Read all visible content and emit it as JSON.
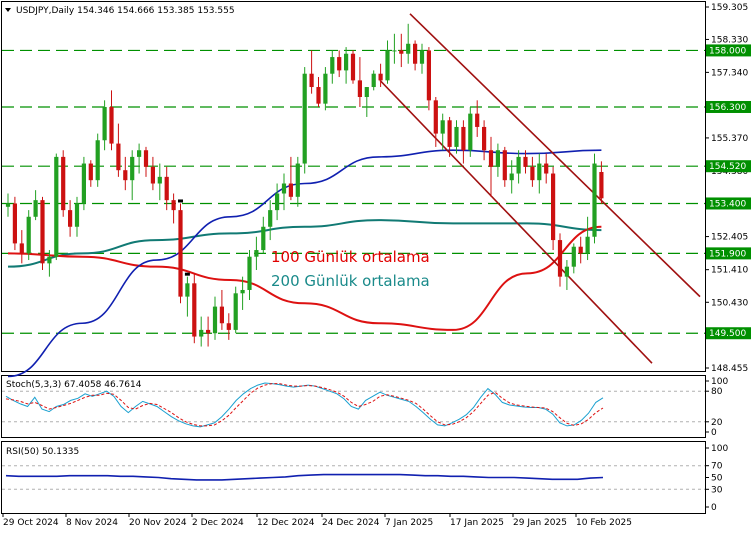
{
  "header": {
    "symbol_info": "USDJPY,Daily  154.346 154.666 153.385 153.555"
  },
  "chart_data": [
    {
      "type": "candlestick",
      "symbol": "USDJPY",
      "timeframe": "Daily",
      "ohlc_header": [
        154.346,
        154.666,
        153.385,
        153.555
      ],
      "ylim": [
        147.8,
        159.5
      ],
      "y_ticks": [
        "159.305",
        "158.330",
        "157.340",
        "156.355",
        "155.370",
        "154.380",
        "153.390",
        "152.405",
        "151.410",
        "150.430",
        "149.440",
        "148.455"
      ],
      "x_ticks": [
        "29 Oct 2024",
        "8 Nov 2024",
        "20 Nov 2024",
        "2 Dec 2024",
        "12 Dec 2024",
        "24 Dec 2024",
        "7 Jan 2025",
        "17 Jan 2025",
        "29 Jan 2025",
        "10 Feb 2025"
      ],
      "candles": [
        [
          153.3,
          153.7,
          153.0,
          153.4
        ],
        [
          153.4,
          153.6,
          152.0,
          152.2
        ],
        [
          152.2,
          152.6,
          151.6,
          151.9
        ],
        [
          151.9,
          153.2,
          151.7,
          153.0
        ],
        [
          153.0,
          153.8,
          152.9,
          153.5
        ],
        [
          153.5,
          153.6,
          151.4,
          151.6
        ],
        [
          151.6,
          152.0,
          151.2,
          151.8
        ],
        [
          151.8,
          154.9,
          151.7,
          154.8
        ],
        [
          154.8,
          155.0,
          153.0,
          153.2
        ],
        [
          153.2,
          153.5,
          152.4,
          152.7
        ],
        [
          152.7,
          153.6,
          152.4,
          153.4
        ],
        [
          153.4,
          154.8,
          153.2,
          154.6
        ],
        [
          154.6,
          154.7,
          153.9,
          154.1
        ],
        [
          154.1,
          155.5,
          153.9,
          155.3
        ],
        [
          155.3,
          156.5,
          155.0,
          156.3
        ],
        [
          156.3,
          156.8,
          155.0,
          155.2
        ],
        [
          155.2,
          155.8,
          154.2,
          154.4
        ],
        [
          154.4,
          154.8,
          153.8,
          154.1
        ],
        [
          154.1,
          155.0,
          153.5,
          154.8
        ],
        [
          154.8,
          155.2,
          154.3,
          155.0
        ],
        [
          155.0,
          155.1,
          154.2,
          154.5
        ],
        [
          154.5,
          154.8,
          153.8,
          154.0
        ],
        [
          154.0,
          154.6,
          153.5,
          154.2
        ],
        [
          154.2,
          154.5,
          153.2,
          153.5
        ],
        [
          153.5,
          153.7,
          152.8,
          153.2
        ],
        [
          153.2,
          153.4,
          150.4,
          150.6
        ],
        [
          150.6,
          151.2,
          150.0,
          151.0
        ],
        [
          151.0,
          151.3,
          149.2,
          149.4
        ],
        [
          149.4,
          150.0,
          149.1,
          149.6
        ],
        [
          149.6,
          150.0,
          149.1,
          149.5
        ],
        [
          149.5,
          150.6,
          149.3,
          150.3
        ],
        [
          150.3,
          150.8,
          149.6,
          149.8
        ],
        [
          149.8,
          150.1,
          149.3,
          149.6
        ],
        [
          149.6,
          150.9,
          149.5,
          150.7
        ],
        [
          150.7,
          151.2,
          150.2,
          150.8
        ],
        [
          150.8,
          152.0,
          150.5,
          151.8
        ],
        [
          151.8,
          152.4,
          151.4,
          152.0
        ],
        [
          152.0,
          153.0,
          151.9,
          152.7
        ],
        [
          152.7,
          153.5,
          152.3,
          153.2
        ],
        [
          153.2,
          154.0,
          152.9,
          153.7
        ],
        [
          153.7,
          154.3,
          153.2,
          154.0
        ],
        [
          154.0,
          154.8,
          153.5,
          153.6
        ],
        [
          153.6,
          154.8,
          153.3,
          154.6
        ],
        [
          154.6,
          157.5,
          154.3,
          157.3
        ],
        [
          157.3,
          158.0,
          156.7,
          156.9
        ],
        [
          156.9,
          157.2,
          156.3,
          156.4
        ],
        [
          156.4,
          157.5,
          156.2,
          157.3
        ],
        [
          157.3,
          158.0,
          157.0,
          157.8
        ],
        [
          157.8,
          158.0,
          157.2,
          157.4
        ],
        [
          157.4,
          158.1,
          157.0,
          157.9
        ],
        [
          157.9,
          158.0,
          157.0,
          157.1
        ],
        [
          157.1,
          157.8,
          156.3,
          156.6
        ],
        [
          156.6,
          156.9,
          156.0,
          156.9
        ],
        [
          156.9,
          157.4,
          156.8,
          157.3
        ],
        [
          157.3,
          157.6,
          156.9,
          157.1
        ],
        [
          157.1,
          158.3,
          157.0,
          158.0
        ],
        [
          158.0,
          158.5,
          157.6,
          158.0
        ],
        [
          158.0,
          158.5,
          157.5,
          157.9
        ],
        [
          157.9,
          158.8,
          157.6,
          158.2
        ],
        [
          158.2,
          158.3,
          157.4,
          157.6
        ],
        [
          157.6,
          158.2,
          157.3,
          158.0
        ],
        [
          158.0,
          158.1,
          156.2,
          156.5
        ],
        [
          156.5,
          156.6,
          155.1,
          155.5
        ],
        [
          155.5,
          156.1,
          155.0,
          155.9
        ],
        [
          155.9,
          156.0,
          154.8,
          155.1
        ],
        [
          155.1,
          155.9,
          154.9,
          155.7
        ],
        [
          155.7,
          155.9,
          154.6,
          155.0
        ],
        [
          155.0,
          156.3,
          154.8,
          156.1
        ],
        [
          156.1,
          156.5,
          155.4,
          155.7
        ],
        [
          155.7,
          155.9,
          154.7,
          155.0
        ],
        [
          155.0,
          155.4,
          153.6,
          154.5
        ],
        [
          154.5,
          155.2,
          154.2,
          155.0
        ],
        [
          155.0,
          155.1,
          153.9,
          154.1
        ],
        [
          154.1,
          154.7,
          153.7,
          154.3
        ],
        [
          154.3,
          155.0,
          154.0,
          154.8
        ],
        [
          154.8,
          155.0,
          154.3,
          154.5
        ],
        [
          154.5,
          154.8,
          153.9,
          154.1
        ],
        [
          154.1,
          154.9,
          153.7,
          154.6
        ],
        [
          154.6,
          154.9,
          154.0,
          154.3
        ],
        [
          154.3,
          154.5,
          152.0,
          152.3
        ],
        [
          152.3,
          152.5,
          150.9,
          151.2
        ],
        [
          151.2,
          151.7,
          150.8,
          151.5
        ],
        [
          151.5,
          152.2,
          151.3,
          152.1
        ],
        [
          152.1,
          152.4,
          151.6,
          151.9
        ],
        [
          151.9,
          153.0,
          151.7,
          152.4
        ],
        [
          152.4,
          154.9,
          152.2,
          154.6
        ],
        [
          154.346,
          154.666,
          153.385,
          153.555
        ]
      ],
      "ma100": [
        151.9,
        151.8,
        151.5,
        151.1,
        150.4,
        149.8,
        149.6,
        151.3,
        152.7
      ],
      "ma200": [
        151.5,
        151.9,
        152.3,
        152.5,
        152.7,
        152.9,
        152.8,
        152.8,
        152.6
      ],
      "ma_blue": [
        148.2,
        149.8,
        151.7,
        153.0,
        154.0,
        154.8,
        155.0,
        154.9,
        155.0
      ],
      "horizontal_levels": [
        {
          "value": 158.0,
          "label": "158.000"
        },
        {
          "value": 156.3,
          "label": "156.300"
        },
        {
          "value": 154.52,
          "label": "154.520"
        },
        {
          "value": 153.4,
          "label": "153.400"
        },
        {
          "value": 151.9,
          "label": "151.900"
        },
        {
          "value": 149.5,
          "label": "149.500"
        }
      ],
      "annotations": [
        {
          "text": "100 Günlük ortalama",
          "color": "#e00000"
        },
        {
          "text": "200 Günlük ortalama",
          "color": "#1a8a8a"
        }
      ],
      "colors": {
        "bull": "#22a022",
        "bear": "#cc1111",
        "ma100": "#dd1111",
        "ma200": "#117a74",
        "ma_blue": "#1020b0",
        "level": "#009000",
        "channel": "#a01010",
        "marker": "#000000"
      }
    },
    {
      "type": "line",
      "title": "Stoch(5,3,3) 67.4058 46.7614",
      "ylim": [
        0,
        100
      ],
      "y_ticks": [
        "100",
        "80",
        "20",
        "0"
      ],
      "levels": [
        80,
        20
      ],
      "series": [
        {
          "values": [
            70,
            62,
            55,
            50,
            68,
            45,
            40,
            50,
            54,
            62,
            66,
            75,
            70,
            75,
            80,
            70,
            50,
            38,
            50,
            60,
            55,
            50,
            40,
            30,
            22,
            16,
            12,
            10,
            14,
            18,
            30,
            45,
            62,
            75,
            85,
            92,
            96,
            95,
            93,
            90,
            88,
            90,
            92,
            90,
            85,
            80,
            75,
            65,
            50,
            45,
            62,
            70,
            78,
            72,
            68,
            64,
            60,
            50,
            38,
            25,
            14,
            12,
            18,
            25,
            34,
            48,
            68,
            85,
            74,
            58,
            53,
            51,
            49,
            48,
            48,
            45,
            35,
            18,
            12,
            14,
            23,
            37,
            58,
            67
          ]
        },
        {
          "values": [
            65,
            63,
            60,
            55,
            58,
            52,
            45,
            48,
            52,
            56,
            62,
            68,
            72,
            72,
            76,
            74,
            62,
            48,
            45,
            52,
            56,
            54,
            46,
            38,
            28,
            20,
            15,
            12,
            12,
            14,
            22,
            33,
            48,
            62,
            76,
            86,
            92,
            95,
            95,
            92,
            90,
            90,
            91,
            90,
            87,
            83,
            78,
            70,
            58,
            50,
            54,
            60,
            70,
            73,
            70,
            66,
            62,
            56,
            45,
            32,
            20,
            14,
            15,
            20,
            28,
            40,
            56,
            72,
            78,
            66,
            57,
            53,
            51,
            49,
            48,
            47,
            40,
            28,
            17,
            13,
            16,
            25,
            38,
            47
          ]
        }
      ]
    },
    {
      "type": "line",
      "title": "RSI(50) 50.1335",
      "ylim": [
        0,
        100
      ],
      "y_ticks": [
        "100",
        "70",
        "50",
        "30",
        "0"
      ],
      "levels": [
        70,
        30
      ],
      "series": [
        {
          "values": [
            53,
            52,
            52,
            52,
            52,
            53,
            53,
            53,
            53,
            52,
            52,
            51,
            50,
            48,
            47,
            46,
            46,
            46,
            47,
            48,
            49,
            50,
            51,
            53,
            54,
            55,
            55,
            55,
            55,
            55,
            55,
            55,
            54,
            53,
            53,
            52,
            52,
            51,
            50,
            50,
            50,
            49,
            48,
            47,
            47,
            47,
            49,
            50
          ]
        }
      ]
    }
  ]
}
